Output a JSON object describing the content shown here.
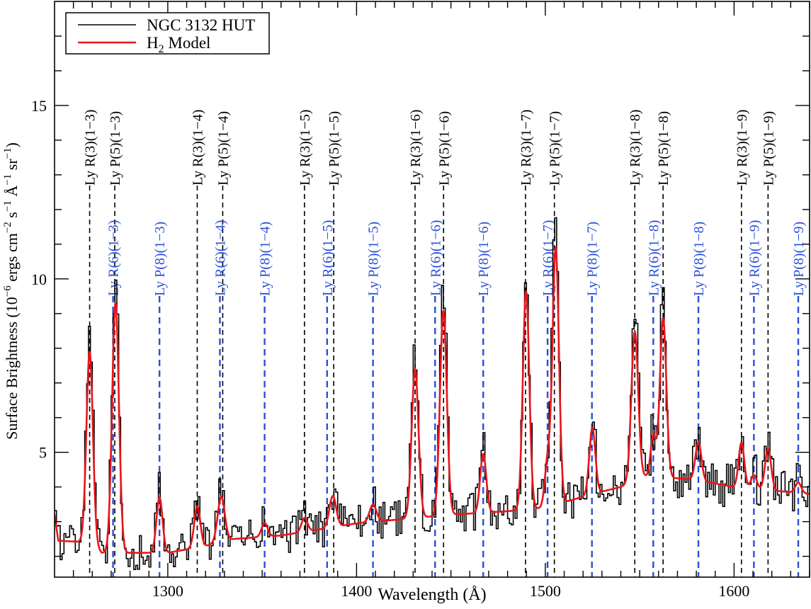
{
  "chart_data": {
    "type": "line",
    "xlabel": "Wavelength (Å)",
    "ylabel_parts": {
      "a": "Surface Brightness (10",
      "a_sup": "−6",
      "b": " ergs cm",
      "b_sup": "−2",
      "c": " s",
      "c_sup": "−1",
      "d": " Å",
      "d_sup": "−1",
      "e": " sr",
      "e_sup": "−1",
      "f": ")"
    },
    "xlim": [
      1240,
      1640
    ],
    "ylim": [
      1.4,
      18.0
    ],
    "xticks": [
      1300,
      1400,
      1500,
      1600
    ],
    "xtick_labels": [
      "1300",
      "1400",
      "1500",
      "1600"
    ],
    "yticks": [
      5,
      10,
      15
    ],
    "ytick_labels": [
      "5",
      "10",
      "15"
    ],
    "legend": {
      "placement": "top-left",
      "entries": [
        {
          "label": "NGC 3132 HUT",
          "color": "#000000"
        },
        {
          "label_main": "H",
          "label_sub": "2",
          "label_rest": " Model",
          "color": "#e8151b"
        }
      ]
    },
    "line_annotations": {
      "black": [
        {
          "label": "Ly R(3)(1−3)",
          "x": 1258.6
        },
        {
          "label": "Ly P(5)(1−3)",
          "x": 1271.9
        },
        {
          "label": "Ly R(3)(1−4)",
          "x": 1315.6
        },
        {
          "label": "Ly P(5)(1−4)",
          "x": 1329.1
        },
        {
          "label": "Ly R(3)(1−5)",
          "x": 1372.4
        },
        {
          "label": "Ly P(5)(1−5)",
          "x": 1387.9
        },
        {
          "label": "Ly R(3)(1−6)",
          "x": 1431.0
        },
        {
          "label": "Ly P(5)(1−6)",
          "x": 1446.1
        },
        {
          "label": "Ly R(3)(1−7)",
          "x": 1489.5
        },
        {
          "label": "Ly P(5)(1−7)",
          "x": 1504.8
        },
        {
          "label": "Ly R(3)(1−8)",
          "x": 1547.4
        },
        {
          "label": "Ly P(5)(1−8)",
          "x": 1562.4
        },
        {
          "label": "Ly R(3)(1−9)",
          "x": 1603.9
        },
        {
          "label": "Ly P(5)(1−9)",
          "x": 1618.0
        }
      ],
      "blue": [
        {
          "label": "Ly R(6)(1−3)",
          "x": 1271.0
        },
        {
          "label": "Ly P(8)(1−3)",
          "x": 1295.6
        },
        {
          "label": "Ly R(6)(1−4)",
          "x": 1327.6
        },
        {
          "label": "Ly P(8)(1−4)",
          "x": 1351.3
        },
        {
          "label": "Ly R(6)(1−5)",
          "x": 1384.4
        },
        {
          "label": "Ly P(8)(1−5)",
          "x": 1408.7
        },
        {
          "label": "Ly R(6)(1−6)",
          "x": 1441.6
        },
        {
          "label": "Ly P(8)(1−6)",
          "x": 1467.1
        },
        {
          "label": "Ly R(6)(1−7)",
          "x": 1501.2
        },
        {
          "label": "Ly P(8)(1−7)",
          "x": 1524.7
        },
        {
          "label": "Ly R(6)(1−8)",
          "x": 1557.2
        },
        {
          "label": "Ly P(8)(1−8)",
          "x": 1581.1
        },
        {
          "label": "Ly R(6)(1−9)",
          "x": 1610.5
        },
        {
          "label": "Ly P(8)(1−9)",
          "x": 1634.0
        }
      ]
    },
    "series": [
      {
        "name": "NGC 3132 HUT",
        "color": "#000000",
        "style": "step",
        "x_start": 1240,
        "x_step": 1.0,
        "noise_amplitude": 0.55,
        "peak_enhance": 1.12
      },
      {
        "name": "H2 Model",
        "color": "#e8151b",
        "style": "line",
        "continuum": [
          [
            1240,
            3.2
          ],
          [
            1242,
            2.45
          ],
          [
            1260,
            2.4
          ],
          [
            1265,
            2.1
          ],
          [
            1300,
            2.1
          ],
          [
            1320,
            2.3
          ],
          [
            1335,
            2.5
          ],
          [
            1360,
            2.6
          ],
          [
            1400,
            2.95
          ],
          [
            1430,
            3.1
          ],
          [
            1450,
            3.2
          ],
          [
            1480,
            3.3
          ],
          [
            1500,
            3.4
          ],
          [
            1525,
            3.8
          ],
          [
            1540,
            4.0
          ],
          [
            1553,
            4.3
          ],
          [
            1570,
            4.25
          ],
          [
            1580,
            4.2
          ],
          [
            1600,
            4.0
          ],
          [
            1620,
            3.9
          ],
          [
            1640,
            3.8
          ]
        ],
        "peaks": [
          {
            "x": 1258.6,
            "amp": 5.5,
            "sigma": 1.7
          },
          {
            "x": 1272.3,
            "amp": 7.2,
            "sigma": 1.8
          },
          {
            "x": 1295.6,
            "amp": 1.6,
            "sigma": 1.6
          },
          {
            "x": 1315.6,
            "amp": 1.2,
            "sigma": 1.6
          },
          {
            "x": 1328.3,
            "amp": 1.3,
            "sigma": 1.9
          },
          {
            "x": 1351.3,
            "amp": 0.4,
            "sigma": 1.6
          },
          {
            "x": 1372.4,
            "amp": 0.4,
            "sigma": 1.6
          },
          {
            "x": 1387.4,
            "amp": 0.9,
            "sigma": 1.8
          },
          {
            "x": 1408.7,
            "amp": 0.5,
            "sigma": 1.8
          },
          {
            "x": 1431.0,
            "amp": 4.3,
            "sigma": 1.8
          },
          {
            "x": 1446.0,
            "amp": 5.9,
            "sigma": 1.8
          },
          {
            "x": 1467.1,
            "amp": 1.7,
            "sigma": 1.6
          },
          {
            "x": 1489.8,
            "amp": 6.3,
            "sigma": 1.7
          },
          {
            "x": 1501.2,
            "amp": 1.3,
            "sigma": 1.5
          },
          {
            "x": 1505.5,
            "amp": 7.4,
            "sigma": 1.7
          },
          {
            "x": 1524.9,
            "amp": 1.9,
            "sigma": 1.6
          },
          {
            "x": 1547.4,
            "amp": 4.3,
            "sigma": 1.8
          },
          {
            "x": 1557.2,
            "amp": 1.2,
            "sigma": 1.4
          },
          {
            "x": 1562.4,
            "amp": 4.6,
            "sigma": 1.7
          },
          {
            "x": 1581.1,
            "amp": 1.1,
            "sigma": 1.6
          },
          {
            "x": 1603.9,
            "amp": 1.3,
            "sigma": 1.5
          },
          {
            "x": 1610.5,
            "amp": 0.4,
            "sigma": 1.5
          },
          {
            "x": 1618.0,
            "amp": 1.2,
            "sigma": 1.6
          },
          {
            "x": 1634.0,
            "amp": 0.3,
            "sigma": 1.5
          }
        ]
      }
    ]
  }
}
